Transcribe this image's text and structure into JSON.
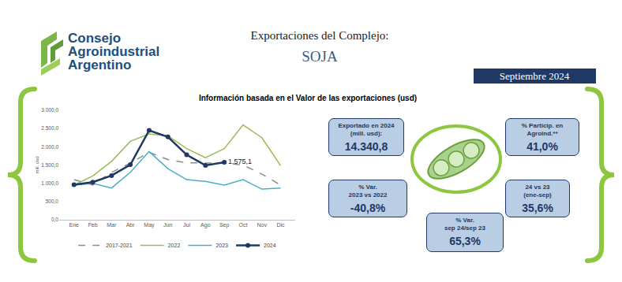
{
  "header": {
    "logo": [
      "Consejo",
      "Agroindustrial",
      "Argentino"
    ],
    "title": "Exportaciones del Complejo:",
    "subtitle": "SOJA",
    "period": "Septiembre 2024"
  },
  "chart_data": {
    "type": "line",
    "title": "Información basada en el Valor de las exportaciones (usd)",
    "y_label": "mill. usd",
    "categories": [
      "Ene",
      "Feb",
      "Mar",
      "Abr",
      "May",
      "Jun",
      "Jul",
      "Ago",
      "Sep",
      "Oct",
      "Nov",
      "Dic"
    ],
    "series": [
      {
        "name": "2017-2021",
        "color": "#8c8c8c",
        "line_style": "dashed",
        "marker": "none",
        "values": [
          1100,
          950,
          1300,
          1550,
          1850,
          1650,
          1560,
          1550,
          1550,
          1500,
          1250,
          950
        ]
      },
      {
        "name": "2022",
        "color": "#9bbb59",
        "line_style": "solid",
        "marker": "none",
        "values": [
          950,
          1200,
          1600,
          2150,
          2350,
          2300,
          1950,
          1700,
          1950,
          2600,
          2250,
          1480
        ]
      },
      {
        "name": "2023",
        "color": "#4bacc6",
        "line_style": "solid",
        "marker": "none",
        "values": [
          950,
          1000,
          870,
          1300,
          1870,
          1400,
          1100,
          1050,
          950,
          1100,
          840,
          870
        ]
      },
      {
        "name": "2024",
        "color": "#1f3864",
        "line_style": "solid",
        "marker": "circle",
        "values": [
          960,
          1030,
          1210,
          1510,
          2450,
          2270,
          1780,
          1490,
          1575.1,
          null,
          null,
          null
        ],
        "value_labels": [
          null,
          null,
          null,
          null,
          null,
          null,
          null,
          null,
          "1.575,1",
          null,
          null,
          null
        ]
      }
    ],
    "ylim": [
      0,
      3000
    ],
    "yticks": [
      {
        "value": 0,
        "label": "0,0"
      },
      {
        "value": 500,
        "label": "500,0"
      },
      {
        "value": 1000,
        "label": "1.000,0"
      },
      {
        "value": 1500,
        "label": "1.500,0"
      },
      {
        "value": 2000,
        "label": "2.000,0"
      },
      {
        "value": 2500,
        "label": "2.500,0"
      },
      {
        "value": 3000,
        "label": "3.000,0"
      }
    ],
    "grid": false,
    "legend": "bottom"
  },
  "kpis": [
    {
      "label": [
        "Exportado en 2024",
        "(mill. usd):"
      ],
      "value": "14.340,8"
    },
    {
      "label": [
        "% Particip. en",
        "Agroind.**"
      ],
      "value": "41,0%"
    },
    {
      "label": [
        "% Var.",
        "2023 vs 2022"
      ],
      "value": "-40,8%"
    },
    {
      "label": [
        "24 vs 23",
        "(ene-sep)"
      ],
      "value": "35,6%"
    },
    {
      "label": [
        "% Var.",
        "sep 24/sep 23"
      ],
      "value": "65,3%"
    }
  ]
}
